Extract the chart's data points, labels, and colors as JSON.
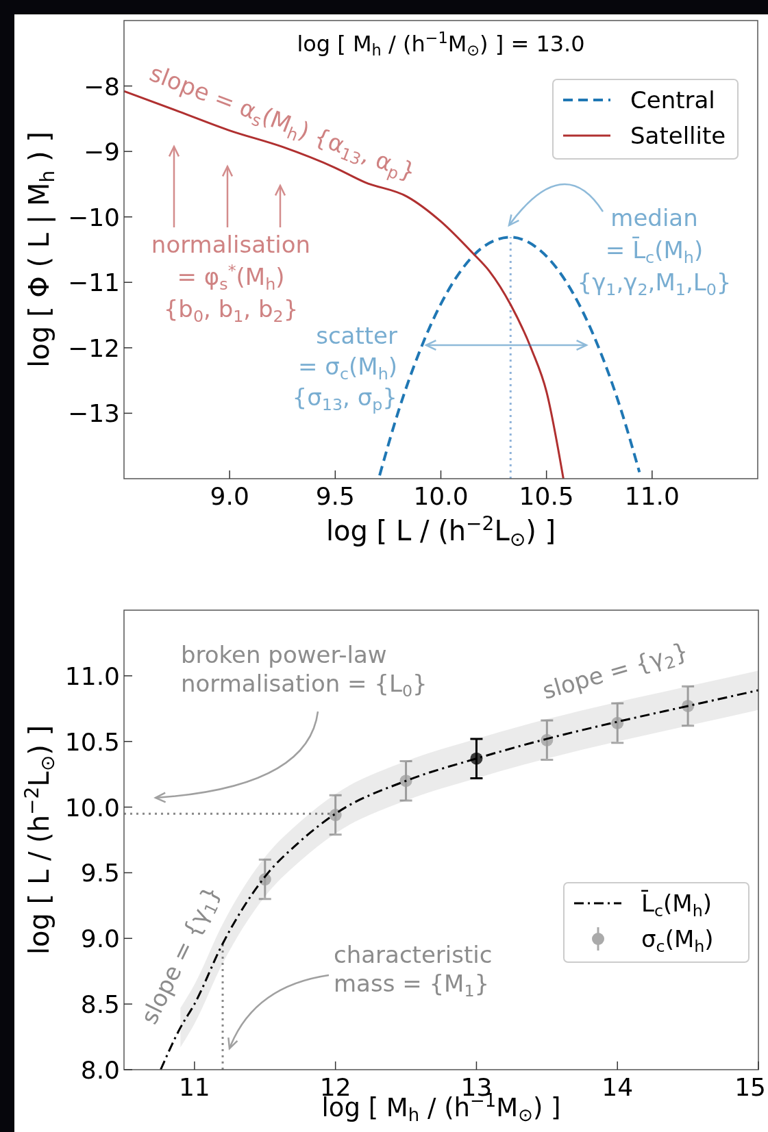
{
  "chart_data": [
    {
      "type": "line",
      "title": "log [ M$_{h}$ / (h$^{−1}$M$_{⊙}$) ] = 13.0",
      "xlabel": "log [ L / (h$^{−2}$L$_{⊙}$) ]",
      "ylabel": "log [ Φ ( L | M$_{h}$ ) ]",
      "xlim": [
        8.5,
        11.5
      ],
      "xticks": [
        {
          "value": 9,
          "label": "9.0"
        },
        {
          "value": 9.5,
          "label": "9.5"
        },
        {
          "value": 10,
          "label": "10.0"
        },
        {
          "value": 10.5,
          "label": "10.5"
        },
        {
          "value": 11,
          "label": "11.0"
        }
      ],
      "ylim": [
        -14,
        -7
      ],
      "yticks": [
        {
          "value": -8,
          "label": "−8"
        },
        {
          "value": -9,
          "label": "−9"
        },
        {
          "value": -10,
          "label": "−10"
        },
        {
          "value": -11,
          "label": "−11"
        },
        {
          "value": -12,
          "label": "−12"
        },
        {
          "value": -13,
          "label": "−13"
        }
      ],
      "series": [
        {
          "name": "Central",
          "color": "#1f77b4",
          "line_style": "dashed",
          "x": [
            9.71,
            9.8,
            9.9,
            10.0,
            10.1,
            10.2,
            10.33,
            10.45,
            10.55,
            10.65,
            10.75,
            10.85,
            10.94
          ],
          "values": [
            -13.95,
            -12.96,
            -12.05,
            -11.33,
            -10.8,
            -10.46,
            -10.31,
            -10.46,
            -10.79,
            -11.31,
            -12.02,
            -12.92,
            -13.9
          ]
        },
        {
          "name": "Satellite",
          "color": "#b03030",
          "line_style": "solid",
          "x": [
            8.5,
            8.76,
            9.0,
            9.25,
            9.5,
            9.64,
            9.84,
            10.0,
            10.15,
            10.23,
            10.33,
            10.43,
            10.5,
            10.58
          ],
          "values": [
            -8.08,
            -8.39,
            -8.68,
            -8.93,
            -9.25,
            -9.47,
            -9.69,
            -10.07,
            -10.55,
            -10.83,
            -11.34,
            -12.03,
            -12.67,
            -14.0
          ]
        }
      ],
      "ref_lines": [
        {
          "axis": "x",
          "value": 10.33,
          "color": "#8fb3d9",
          "line_style": "dotted"
        }
      ],
      "annotations": [
        "slope = α$_{s}$(M$_{h}$) {α$_{13}$, α$_{p}$}",
        "normalisation\n= φ$_{s}$$^{*}$(M$_{h}$)\n{b$_{0}$, b$_{1}$, b$_{2}$}",
        "median\n= L̄$_{c}$(M$_{h}$)\n{γ$_{1}$,γ$_{2}$,M$_{1}$,L$_{0}$}",
        "scatter\n= σ$_{c}$(M$_{h}$)\n{σ$_{13}$, σ$_{p}$}"
      ],
      "legend": "top right"
    },
    {
      "type": "line",
      "xlabel": "log [ M$_{h}$ / (h$^{−1}$M$_{⊙}$) ]",
      "ylabel": "log [ L / (h$^{−2}$L$_{⊙}$) ]",
      "xlim": [
        10.5,
        15
      ],
      "xticks": [
        11,
        12,
        13,
        14,
        15
      ],
      "ylim": [
        8,
        11.5
      ],
      "yticks": [
        {
          "value": 8,
          "label": "8.0"
        },
        {
          "value": 8.5,
          "label": "8.5"
        },
        {
          "value": 9,
          "label": "9.0"
        },
        {
          "value": 9.5,
          "label": "9.5"
        },
        {
          "value": 10,
          "label": "10.0"
        },
        {
          "value": 10.5,
          "label": "10.5"
        },
        {
          "value": 11,
          "label": "11.0"
        }
      ],
      "series": [
        {
          "name": "L̄$_{c}$(M$_{h}$)",
          "color": "#000000",
          "line_style": "dashdot",
          "x": [
            10.76,
            10.9,
            11.0,
            11.2,
            11.5,
            11.75,
            12.0,
            12.5,
            13.0,
            13.5,
            14.0,
            14.5,
            15.0
          ],
          "values": [
            8.0,
            8.32,
            8.5,
            8.96,
            9.47,
            9.74,
            9.95,
            10.2,
            10.37,
            10.52,
            10.65,
            10.77,
            10.89
          ],
          "lower": [
            null,
            8.17,
            8.35,
            8.81,
            9.32,
            9.59,
            9.8,
            10.05,
            10.22,
            10.37,
            10.5,
            10.62,
            10.74
          ],
          "upper": [
            null,
            8.47,
            8.65,
            9.11,
            9.62,
            9.89,
            10.1,
            10.35,
            10.52,
            10.67,
            10.8,
            10.92,
            11.04
          ]
        },
        {
          "type": "scatter",
          "name": "σ$_{c}$(M$_{h}$)",
          "color": "#aaaaaa",
          "marker": "circle",
          "x": [
            11.5,
            12,
            12.5,
            13,
            13.5,
            14,
            14.5
          ],
          "values": [
            9.45,
            9.94,
            10.2,
            10.37,
            10.51,
            10.64,
            10.77
          ],
          "colors": [
            "#aaaaaa",
            "#aaaaaa",
            "#aaaaaa",
            "#000000",
            "#aaaaaa",
            "#aaaaaa",
            "#aaaaaa"
          ],
          "errors": [
            0.15,
            0.15,
            0.15,
            0.15,
            0.15,
            0.15,
            0.15
          ]
        }
      ],
      "ref_lines": [
        {
          "axis": "y",
          "value": 9.95,
          "color": "#888888",
          "line_style": "dotted"
        },
        {
          "axis": "x",
          "value": 11.2,
          "color": "#888888",
          "line_style": "dotted"
        }
      ],
      "annotations": [
        "broken power-law\nnormalisation = {L$_{0}$}",
        "slope = {γ$_{2}$}",
        "slope = {γ$_{1}$}",
        "characteristic\nmass = {M$_{1}$}"
      ],
      "legend": "right"
    }
  ]
}
